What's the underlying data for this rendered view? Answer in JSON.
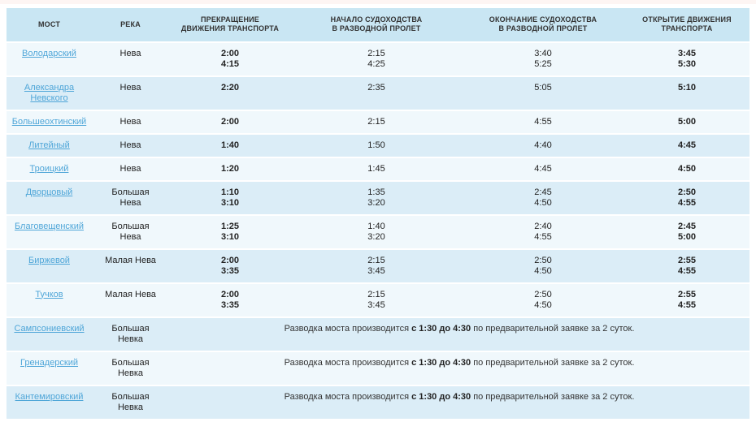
{
  "colors": {
    "header_bg": "#c9e6f3",
    "row_odd_bg": "#f0f8fc",
    "row_even_bg": "#dbedf7",
    "link": "#4fa6d8",
    "text": "#222222"
  },
  "table": {
    "headers": {
      "bridge": "МОСТ",
      "river": "РЕКА",
      "traffic_stop": "ПРЕКРАЩЕНИЕ\nДВИЖЕНИЯ ТРАНСПОРТА",
      "nav_start": "НАЧАЛО СУДОХОДСТВА\nВ РАЗВОДНОЙ ПРОЛЕТ",
      "nav_end": "ОКОНЧАНИЕ СУДОХОДСТВА\nВ РАЗВОДНОЙ ПРОЛЕТ",
      "traffic_open": "ОТКРЫТИЕ ДВИЖЕНИЯ\nТРАНСПОРТА"
    },
    "rows": [
      {
        "bridge": "Володарский",
        "river": "Нева",
        "traffic_stop": "2:00\n4:15",
        "nav_start": "2:15\n4:25",
        "nav_end": "3:40\n5:25",
        "traffic_open": "3:45\n5:30"
      },
      {
        "bridge": "Александра Невского",
        "river": "Нева",
        "traffic_stop": "2:20",
        "nav_start": "2:35",
        "nav_end": "5:05",
        "traffic_open": "5:10"
      },
      {
        "bridge": "Большеохтинский",
        "river": "Нева",
        "traffic_stop": "2:00",
        "nav_start": "2:15",
        "nav_end": "4:55",
        "traffic_open": "5:00"
      },
      {
        "bridge": "Литейный",
        "river": "Нева",
        "traffic_stop": "1:40",
        "nav_start": "1:50",
        "nav_end": "4:40",
        "traffic_open": "4:45"
      },
      {
        "bridge": "Троицкий",
        "river": "Нева",
        "traffic_stop": "1:20",
        "nav_start": "1:45",
        "nav_end": "4:45",
        "traffic_open": "4:50"
      },
      {
        "bridge": "Дворцовый",
        "river": "Большая\nНева",
        "traffic_stop": "1:10\n3:10",
        "nav_start": "1:35\n3:20",
        "nav_end": "2:45\n4:50",
        "traffic_open": "2:50\n4:55"
      },
      {
        "bridge": "Благовещенский",
        "river": "Большая\nНева",
        "traffic_stop": "1:25\n3:10",
        "nav_start": "1:40\n3:20",
        "nav_end": "2:40\n4:55",
        "traffic_open": "2:45\n5:00"
      },
      {
        "bridge": "Биржевой",
        "river": "Малая Нева",
        "traffic_stop": "2:00\n3:35",
        "nav_start": "2:15\n3:45",
        "nav_end": "2:50\n4:50",
        "traffic_open": "2:55\n4:55"
      },
      {
        "bridge": "Тучков",
        "river": "Малая Нева",
        "traffic_stop": "2:00\n3:35",
        "nav_start": "2:15\n3:45",
        "nav_end": "2:50\n4:50",
        "traffic_open": "2:55\n4:55"
      },
      {
        "bridge": "Сампсониевский",
        "river": "Большая\nНевка",
        "note": {
          "prefix": "Разводка моста производится ",
          "bold": "с 1:30 до 4:30",
          "suffix": " по предварительной заявке за 2 суток."
        }
      },
      {
        "bridge": "Гренадерский",
        "river": "Большая\nНевка",
        "note": {
          "prefix": "Разводка моста производится ",
          "bold": "с 1:30 до 4:30",
          "suffix": " по предварительной заявке за 2 суток."
        }
      },
      {
        "bridge": "Кантемировский",
        "river": "Большая\nНевка",
        "note": {
          "prefix": "Разводка моста производится ",
          "bold": "с 1:30 до 4:30",
          "suffix": " по предварительной заявке за 2 суток."
        }
      }
    ]
  }
}
